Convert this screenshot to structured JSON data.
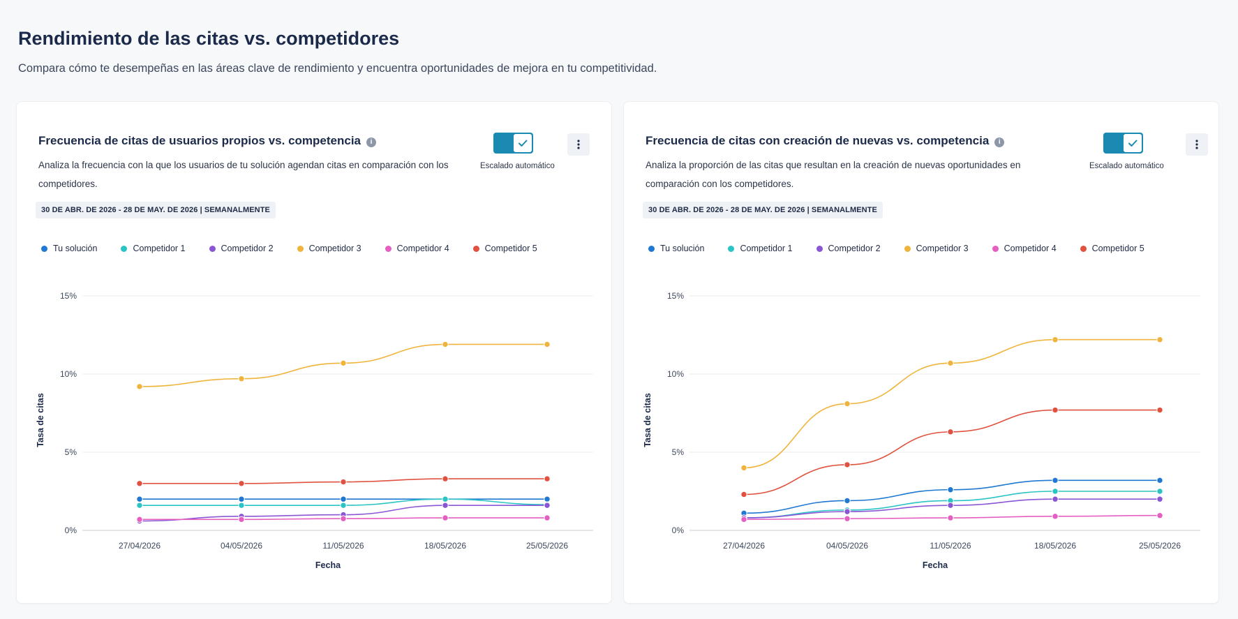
{
  "header": {
    "title": "Rendimiento de las citas vs. competidores",
    "subtitle": "Compara cómo te desempeñas en las áreas clave de rendimiento y encuentra oportunidades de mejora en tu competitividad."
  },
  "colors": {
    "Tu solución": "#1f78d1",
    "Competidor 1": "#2bc4c4",
    "Competidor 2": "#8a56d6",
    "Competidor 3": "#f0b43c",
    "Competidor 4": "#e45fc0",
    "Competidor 5": "#e0523f",
    "toggle": "#1b8ab3"
  },
  "cards": [
    {
      "title": "Frecuencia de citas de usuarios propios vs. competencia",
      "info_icon": "info-icon",
      "description": "Analiza la frecuencia con la que los usuarios de tu solución agendan citas en comparación con los competidores.",
      "date_range": "30 DE ABR. DE 2026 - 28 DE MAY. DE 2026 | SEMANALMENTE",
      "toggle_label": "Escalado automático",
      "toggle_on": true,
      "menu_icon": "kebab-menu-icon",
      "legend": [
        "Tu solución",
        "Competidor 1",
        "Competidor 2",
        "Competidor 3",
        "Competidor 4",
        "Competidor 5"
      ]
    },
    {
      "title": "Frecuencia de citas con creación de nuevas vs. competencia",
      "info_icon": "info-icon",
      "description": "Analiza la proporción de las citas que resultan en la creación de nuevas oportunidades en comparación con los competidores.",
      "date_range": "30 DE ABR. DE 2026 - 28 DE MAY. DE 2026 | SEMANALMENTE",
      "toggle_label": "Escalado automático",
      "toggle_on": true,
      "menu_icon": "kebab-menu-icon",
      "legend": [
        "Tu solución",
        "Competidor 1",
        "Competidor 2",
        "Competidor 3",
        "Competidor 4",
        "Competidor 5"
      ]
    }
  ],
  "chart_data": [
    {
      "type": "line",
      "x": [
        "27/04/2026",
        "04/05/2026",
        "11/05/2026",
        "18/05/2026",
        "25/05/2026"
      ],
      "xlabel": "Fecha",
      "ylabel": "Tasa de citas",
      "yticks": [
        "0%",
        "5%",
        "10%",
        "15%"
      ],
      "ylim": [
        0,
        15
      ],
      "grid": true,
      "legend_position": "top-left",
      "series": [
        {
          "name": "Tu solución",
          "values": [
            2.0,
            2.0,
            2.0,
            2.0,
            2.0
          ]
        },
        {
          "name": "Competidor 1",
          "values": [
            1.6,
            1.6,
            1.6,
            2.0,
            1.65
          ]
        },
        {
          "name": "Competidor 2",
          "values": [
            0.6,
            0.9,
            1.0,
            1.6,
            1.6
          ]
        },
        {
          "name": "Competidor 3",
          "values": [
            9.2,
            9.7,
            10.7,
            11.9,
            11.9
          ]
        },
        {
          "name": "Competidor 4",
          "values": [
            0.7,
            0.7,
            0.75,
            0.8,
            0.8
          ]
        },
        {
          "name": "Competidor 5",
          "values": [
            3.0,
            3.0,
            3.1,
            3.3,
            3.3
          ]
        }
      ]
    },
    {
      "type": "line",
      "x": [
        "27/04/2026",
        "04/05/2026",
        "11/05/2026",
        "18/05/2026",
        "25/05/2026"
      ],
      "xlabel": "Fecha",
      "ylabel": "Tasa de citas",
      "yticks": [
        "0%",
        "5%",
        "10%",
        "15%"
      ],
      "ylim": [
        0,
        15
      ],
      "grid": true,
      "legend_position": "top-left",
      "series": [
        {
          "name": "Tu solución",
          "values": [
            1.1,
            1.9,
            2.6,
            3.2,
            3.2
          ]
        },
        {
          "name": "Competidor 1",
          "values": [
            0.8,
            1.3,
            1.9,
            2.5,
            2.5
          ]
        },
        {
          "name": "Competidor 2",
          "values": [
            0.8,
            1.2,
            1.6,
            2.0,
            2.0
          ]
        },
        {
          "name": "Competidor 3",
          "values": [
            4.0,
            8.1,
            10.7,
            12.2,
            12.2
          ]
        },
        {
          "name": "Competidor 4",
          "values": [
            0.7,
            0.75,
            0.8,
            0.9,
            0.95
          ]
        },
        {
          "name": "Competidor 5",
          "values": [
            2.3,
            4.2,
            6.3,
            7.7,
            7.7
          ]
        }
      ]
    }
  ]
}
